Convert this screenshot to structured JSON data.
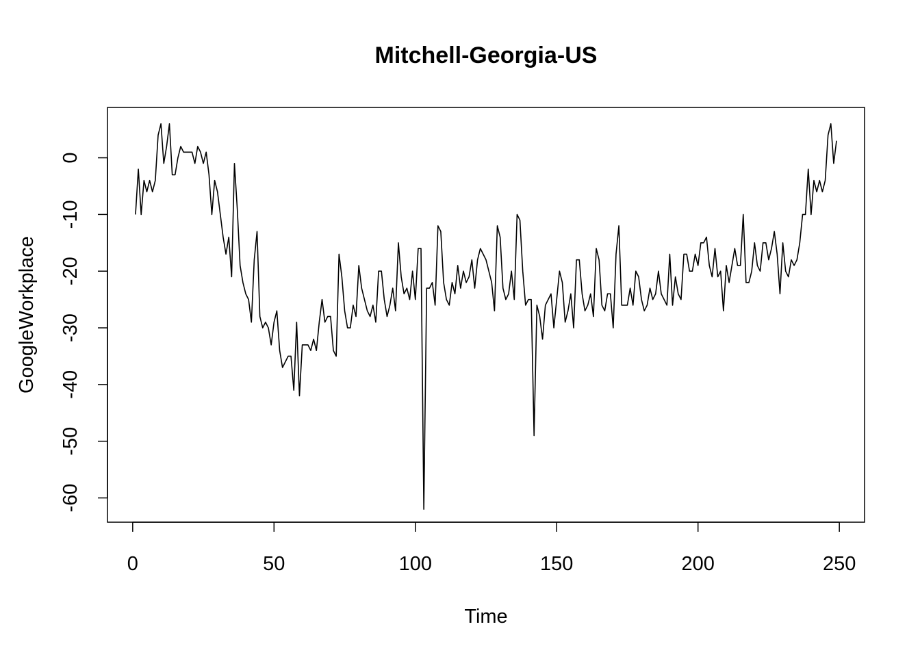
{
  "chart_data": {
    "type": "line",
    "title": "Mitchell-Georgia-US",
    "xlabel": "Time",
    "ylabel": "GoogleWorkplace",
    "xlim": [
      -8.92,
      258.92
    ],
    "ylim": [
      -64.28,
      8.88
    ],
    "xticks": [
      0,
      50,
      100,
      150,
      200,
      250
    ],
    "yticks": [
      0,
      -10,
      -20,
      -30,
      -40,
      -50,
      -60
    ],
    "series": [
      {
        "x_start": 1,
        "values": [
          -10,
          -2,
          -10,
          -4,
          -6,
          -4,
          -6,
          -4,
          4,
          6,
          -1,
          2,
          6,
          -3,
          -3,
          0,
          2,
          1,
          1,
          1,
          1,
          -1,
          2,
          1,
          -1,
          1,
          -3,
          -10,
          -4,
          -6,
          -10,
          -14,
          -17,
          -14,
          -21,
          -1,
          -9,
          -19,
          -22,
          -24,
          -25,
          -29,
          -18,
          -13,
          -28,
          -30,
          -29,
          -30,
          -33,
          -29,
          -27,
          -34,
          -37,
          -36,
          -35,
          -35,
          -41,
          -29,
          -42,
          -33,
          -33,
          -33,
          -34,
          -32,
          -34,
          -29,
          -25,
          -29,
          -28,
          -28,
          -34,
          -35,
          -17,
          -21,
          -27,
          -30,
          -30,
          -26,
          -28,
          -19,
          -23,
          -25,
          -27,
          -28,
          -26,
          -29,
          -20,
          -20,
          -25,
          -28,
          -26,
          -23,
          -27,
          -15,
          -21,
          -24,
          -23,
          -25,
          -20,
          -25,
          -16,
          -16,
          -62,
          -23,
          -23,
          -22,
          -26,
          -12,
          -13,
          -22,
          -25,
          -26,
          -22,
          -24,
          -19,
          -23,
          -20,
          -22,
          -21,
          -18,
          -23,
          -18,
          -16,
          -17,
          -18,
          -20,
          -22,
          -27,
          -12,
          -14,
          -23,
          -25,
          -24,
          -20,
          -25,
          -10,
          -11,
          -20,
          -26,
          -25,
          -25,
          -49,
          -26,
          -28,
          -32,
          -26,
          -25,
          -24,
          -30,
          -25,
          -20,
          -22,
          -29,
          -27,
          -24,
          -30,
          -18,
          -18,
          -24,
          -27,
          -26,
          -24,
          -28,
          -16,
          -18,
          -26,
          -27,
          -24,
          -24,
          -30,
          -17,
          -12,
          -26,
          -26,
          -26,
          -23,
          -26,
          -20,
          -21,
          -25,
          -27,
          -26,
          -23,
          -25,
          -24,
          -20,
          -24,
          -25,
          -26,
          -17,
          -26,
          -21,
          -24,
          -25,
          -17,
          -17,
          -20,
          -20,
          -17,
          -19,
          -15,
          -15,
          -14,
          -19,
          -21,
          -16,
          -21,
          -20,
          -27,
          -19,
          -22,
          -19,
          -16,
          -19,
          -19,
          -10,
          -22,
          -22,
          -20,
          -15,
          -19,
          -20,
          -15,
          -15,
          -18,
          -16,
          -13,
          -17,
          -24,
          -15,
          -20,
          -21,
          -18,
          -19,
          -18,
          -15,
          -10,
          -10,
          -2,
          -10,
          -4,
          -6,
          -4,
          -6,
          -4,
          4,
          6,
          -1,
          3
        ]
      }
    ]
  }
}
